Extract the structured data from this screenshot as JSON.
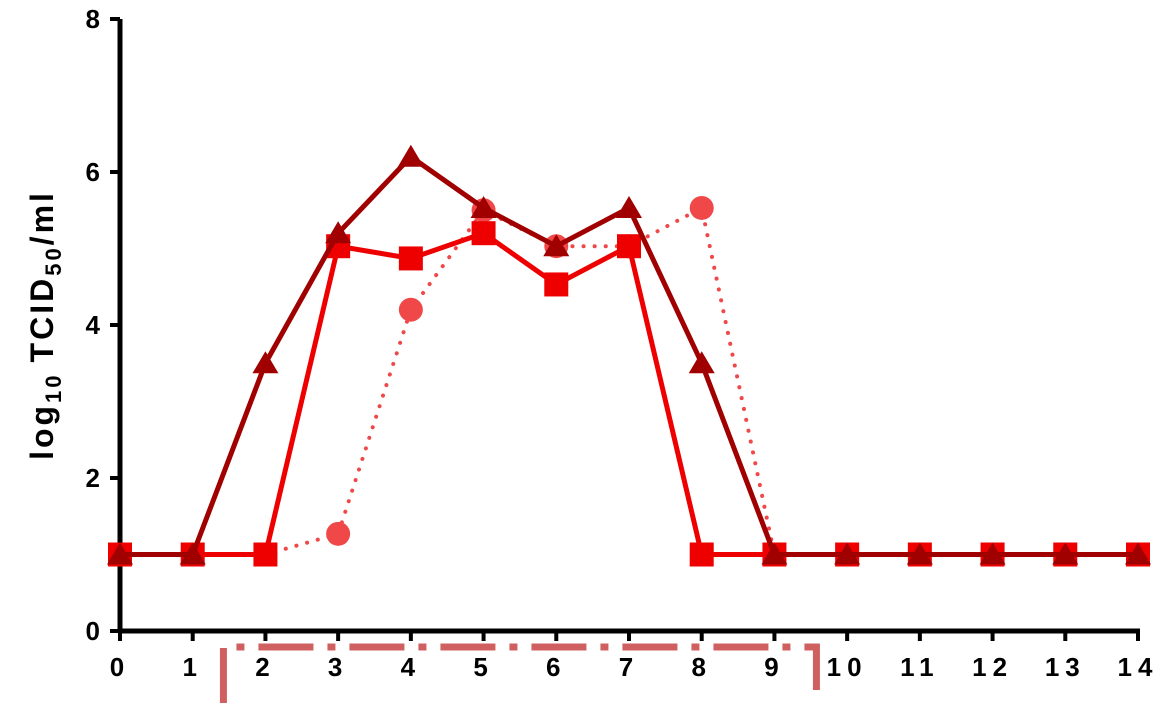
{
  "chart_data": {
    "type": "line",
    "title": "",
    "xlabel": "",
    "ylabel": {
      "prefix": "log",
      "prefix_sub": "10",
      "main": "TCID",
      "main_sub": "50",
      "suffix": "/ml"
    },
    "xlim": [
      0,
      14
    ],
    "ylim": [
      0,
      8
    ],
    "x_ticks": [
      0,
      1,
      2,
      3,
      4,
      5,
      6,
      7,
      8,
      9,
      10,
      11,
      12,
      13,
      14
    ],
    "y_ticks": [
      0,
      2,
      4,
      6,
      8
    ],
    "x_tick_labels": [
      "0",
      "1",
      "2",
      "3",
      "4",
      "5",
      "6",
      "7",
      "8",
      "9",
      "10",
      "11",
      "12",
      "13",
      "14"
    ],
    "y_tick_labels": [
      "0",
      "2",
      "4",
      "6",
      "8"
    ],
    "grid": false,
    "highlight_range": [
      2,
      9
    ],
    "series": [
      {
        "marker": "circle",
        "line_style": "dotted",
        "color": "#f04848",
        "x": [
          0,
          1,
          2,
          3,
          4,
          5,
          6,
          7,
          8,
          9,
          10,
          11,
          12,
          13,
          14
        ],
        "y": [
          1,
          1,
          1,
          1.27,
          4.2,
          5.5,
          5.03,
          5.03,
          5.53,
          1,
          1,
          1,
          1,
          1,
          1
        ]
      },
      {
        "marker": "square",
        "line_style": "solid",
        "color": "#ee0000",
        "x": [
          0,
          1,
          2,
          3,
          4,
          5,
          6,
          7,
          8,
          9,
          10,
          11,
          12,
          13,
          14
        ],
        "y": [
          1,
          1,
          1,
          5.03,
          4.87,
          5.2,
          4.53,
          5.03,
          1,
          1,
          1,
          1,
          1,
          1,
          1
        ]
      },
      {
        "marker": "triangle",
        "line_style": "solid",
        "color": "#a00000",
        "x": [
          0,
          1,
          2,
          3,
          4,
          5,
          6,
          7,
          8,
          9,
          10,
          11,
          12,
          13,
          14
        ],
        "y": [
          1,
          1,
          3.5,
          5.2,
          6.2,
          5.53,
          5.03,
          5.53,
          3.5,
          1,
          1,
          1,
          1,
          1,
          1
        ]
      }
    ],
    "highlight_color": "#d06060"
  }
}
